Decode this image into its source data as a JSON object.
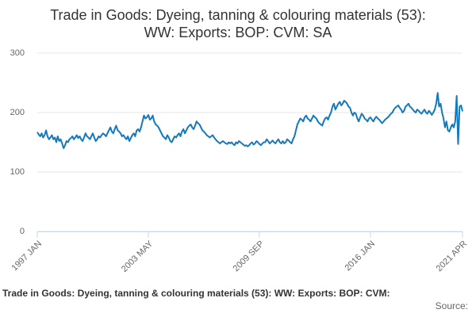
{
  "chart_data": {
    "type": "line",
    "title": "Trade in Goods: Dyeing, tanning & colouring materials (53): WW: Exports: BOP: CVM: SA",
    "footer_title": "Trade in Goods: Dyeing, tanning & colouring materials (53): WW: Exports: BOP: CVM:",
    "source": "Source:",
    "categories": [
      "1997 JAN",
      null,
      null,
      null,
      null,
      null,
      null,
      null,
      null,
      null,
      null,
      null,
      null,
      null,
      null,
      null,
      null,
      null,
      null,
      null,
      null,
      null,
      null,
      null,
      null,
      null,
      null,
      null,
      null,
      null,
      null,
      null,
      null,
      null,
      null,
      null,
      null,
      null,
      null,
      null,
      null,
      null,
      null,
      null,
      null,
      null,
      null,
      null,
      null,
      null,
      null,
      null,
      null,
      null,
      null,
      null,
      null,
      null,
      null,
      null,
      null,
      null,
      null,
      null,
      null,
      null,
      null,
      null,
      null,
      null,
      null,
      null,
      null,
      null,
      null,
      null,
      "2003 MAY",
      null,
      null,
      null,
      null,
      null,
      null,
      null,
      null,
      null,
      null,
      null,
      null,
      null,
      null,
      null,
      null,
      null,
      null,
      null,
      null,
      null,
      null,
      null,
      null,
      null,
      null,
      null,
      null,
      null,
      null,
      null,
      null,
      null,
      null,
      null,
      null,
      null,
      null,
      null,
      null,
      null,
      null,
      null,
      null,
      null,
      null,
      null,
      null,
      null,
      null,
      null,
      null,
      null,
      null,
      null,
      null,
      null,
      null,
      null,
      null,
      null,
      null,
      null,
      null,
      null,
      null,
      null,
      null,
      null,
      null,
      null,
      null,
      null,
      null,
      null,
      "2009 SEP",
      null,
      null,
      null,
      null,
      null,
      null,
      null,
      null,
      null,
      null,
      null,
      null,
      null,
      null,
      null,
      null,
      null,
      null,
      null,
      null,
      null,
      null,
      null,
      null,
      null,
      null,
      null,
      null,
      null,
      null,
      null,
      null,
      null,
      null,
      null,
      null,
      null,
      null,
      null,
      null,
      null,
      null,
      null,
      null,
      null,
      null,
      null,
      null,
      null,
      null,
      null,
      null,
      null,
      null,
      null,
      null,
      null,
      null,
      null,
      null,
      null,
      null,
      null,
      null,
      null,
      null,
      null,
      null,
      null,
      null,
      null,
      null,
      null,
      null,
      null,
      "2016 JAN",
      null,
      null,
      null,
      null,
      null,
      null,
      null,
      null,
      null,
      null,
      null,
      null,
      null,
      null,
      null,
      null,
      null,
      null,
      null,
      null,
      null,
      null,
      null,
      null,
      null,
      null,
      null,
      null,
      null,
      null,
      null,
      null,
      null,
      null,
      null,
      null,
      null,
      null,
      null,
      null,
      null,
      null,
      null,
      null,
      null,
      null,
      null,
      null,
      null,
      null,
      null,
      null,
      null,
      null,
      null,
      null,
      null,
      null,
      null,
      null,
      null,
      null,
      "2021 APR"
    ],
    "series": [
      {
        "color": "#1479bd",
        "values": [
          167,
          163,
          160,
          165,
          158,
          162,
          170,
          160,
          155,
          158,
          162,
          155,
          158,
          150,
          160,
          152,
          155,
          148,
          140,
          145,
          152,
          150,
          155,
          157,
          160,
          155,
          158,
          162,
          157,
          160,
          155,
          152,
          158,
          165,
          160,
          158,
          155,
          160,
          165,
          158,
          152,
          155,
          160,
          158,
          162,
          165,
          163,
          160,
          165,
          170,
          175,
          168,
          165,
          172,
          178,
          170,
          168,
          165,
          160,
          162,
          158,
          155,
          160,
          152,
          157,
          162,
          165,
          160,
          170,
          172,
          168,
          175,
          185,
          195,
          190,
          192,
          196,
          188,
          190,
          195,
          185,
          180,
          178,
          175,
          170,
          165,
          160,
          158,
          155,
          162,
          158,
          152,
          150,
          155,
          160,
          158,
          162,
          165,
          160,
          168,
          172,
          165,
          170,
          175,
          178,
          180,
          175,
          172,
          178,
          185,
          182,
          180,
          175,
          170,
          168,
          165,
          162,
          160,
          158,
          160,
          162,
          158,
          155,
          152,
          150,
          148,
          150,
          152,
          150,
          148,
          147,
          150,
          148,
          150,
          147,
          145,
          150,
          148,
          152,
          150,
          148,
          146,
          144,
          145,
          143,
          145,
          148,
          150,
          146,
          148,
          152,
          150,
          147,
          145,
          148,
          150,
          150,
          155,
          152,
          148,
          150,
          153,
          150,
          148,
          152,
          155,
          150,
          148,
          152,
          148,
          150,
          155,
          153,
          150,
          148,
          155,
          160,
          170,
          180,
          185,
          190,
          188,
          185,
          192,
          195,
          190,
          188,
          185,
          190,
          195,
          192,
          190,
          185,
          182,
          180,
          178,
          185,
          190,
          192,
          188,
          195,
          200,
          210,
          215,
          205,
          210,
          215,
          218,
          212,
          215,
          220,
          218,
          215,
          210,
          208,
          200,
          195,
          200,
          198,
          190,
          185,
          192,
          198,
          195,
          190,
          188,
          185,
          190,
          192,
          188,
          185,
          190,
          193,
          190,
          188,
          185,
          182,
          185,
          188,
          190,
          192,
          195,
          198,
          200,
          205,
          208,
          210,
          212,
          208,
          205,
          200,
          203,
          210,
          212,
          215,
          210,
          208,
          205,
          202,
          200,
          205,
          203,
          200,
          198,
          202,
          205,
          200,
          198,
          203,
          200,
          196,
          200,
          205,
          215,
          233,
          210,
          215,
          200,
          190,
          175,
          185,
          170,
          168,
          175,
          180,
          175,
          185,
          228,
          147,
          210,
          212,
          202
        ]
      }
    ],
    "ylim": [
      0,
      300
    ],
    "yticks": [
      0,
      100,
      200,
      300
    ],
    "grid": true
  }
}
